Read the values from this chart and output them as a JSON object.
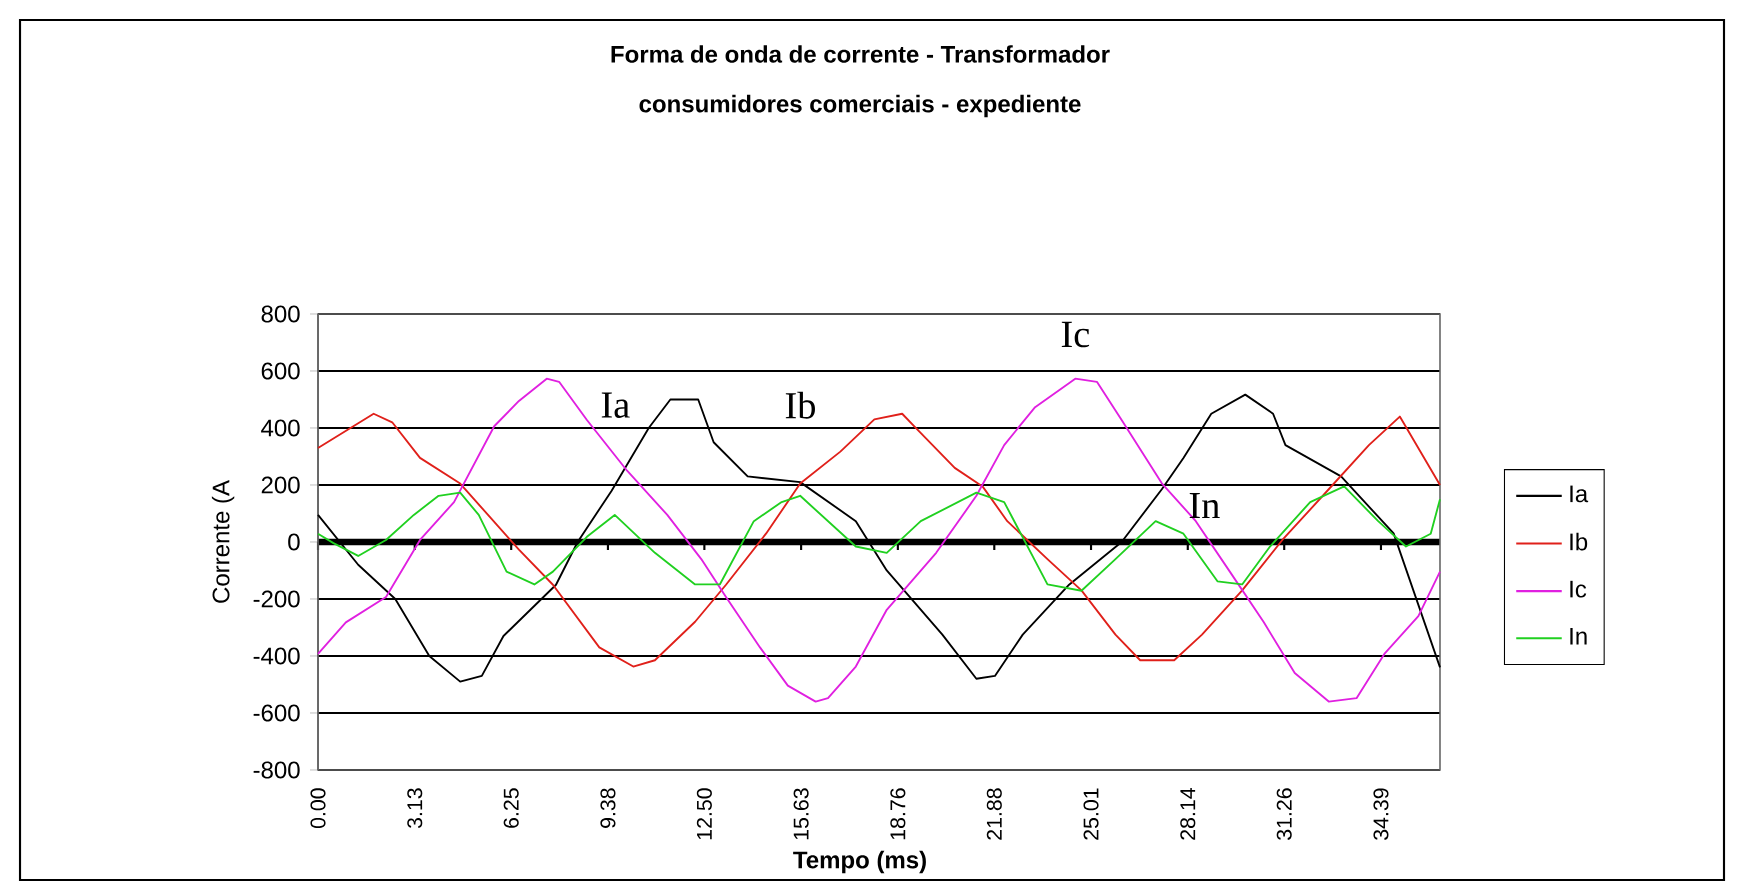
{
  "chart_data": {
    "type": "line",
    "title": "Forma de onda de corrente - Transformador",
    "subtitle": "consumidores comerciais - expediente",
    "xlabel": "Tempo (ms)",
    "ylabel": "Corrente (A",
    "xlim": [
      0,
      36.3
    ],
    "ylim": [
      -800,
      800
    ],
    "xticks": [
      {
        "value": 0,
        "label": "0.00"
      },
      3.13,
      6.25,
      9.38,
      {
        "value": 12.5,
        "label": "12.50"
      },
      15.63,
      18.76,
      21.88,
      25.01,
      28.14,
      31.26,
      34.39
    ],
    "yticks": [
      -800,
      -600,
      -400,
      -200,
      0,
      200,
      400,
      600,
      800
    ],
    "grid": "y",
    "legend": "right",
    "series": [
      {
        "name": "Ia",
        "color": "#000000",
        "x": [
          0,
          1.3,
          2.5,
          3.6,
          4.6,
          5.3,
          6.0,
          7.7,
          8.4,
          9.5,
          10.7,
          11.4,
          12.3,
          12.8,
          13.9,
          15.6,
          17.4,
          18.4,
          20.2,
          21.3,
          21.9,
          22.8,
          24.3,
          26.0,
          27.3,
          28.0,
          28.9,
          30.0,
          30.9,
          31.3,
          33.1,
          34.8,
          36.3
        ],
        "values": [
          95,
          -80,
          -200,
          -400,
          -490,
          -470,
          -330,
          -150,
          0,
          180,
          400,
          500,
          500,
          350,
          230,
          210,
          73,
          -100,
          -325,
          -480,
          -470,
          -325,
          -150,
          0,
          185,
          295,
          450,
          517,
          450,
          340,
          230,
          30,
          -440
        ]
      },
      {
        "name": "Ib",
        "color": "#e0201a",
        "x": [
          0,
          1.8,
          2.4,
          3.3,
          4.6,
          5.5,
          6.5,
          7.6,
          9.1,
          10.2,
          10.9,
          12.2,
          13.2,
          14.5,
          15.6,
          16.9,
          18.0,
          18.9,
          19.3,
          20.6,
          21.5,
          22.3,
          23.6,
          24.7,
          25.8,
          26.6,
          27.7,
          28.6,
          29.9,
          31.2,
          32.7,
          34.0,
          35.0,
          36.3
        ],
        "values": [
          330,
          450,
          420,
          295,
          205,
          95,
          -27,
          -150,
          -370,
          -437,
          -415,
          -280,
          -150,
          30,
          205,
          317,
          430,
          450,
          405,
          260,
          195,
          73,
          -60,
          -170,
          -325,
          -415,
          -415,
          -325,
          -170,
          7,
          185,
          340,
          440,
          200
        ]
      },
      {
        "name": "Ic",
        "color": "#e020e0",
        "x": [
          0,
          0.9,
          2.2,
          3.3,
          4.4,
          5.7,
          6.5,
          7.4,
          7.8,
          8.7,
          10.0,
          11.3,
          12.4,
          13.2,
          14.3,
          15.2,
          16.1,
          16.5,
          17.4,
          18.4,
          20.0,
          21.3,
          22.2,
          23.2,
          24.5,
          25.2,
          26.0,
          27.3,
          28.4,
          29.5,
          30.6,
          31.6,
          32.7,
          33.6,
          34.5,
          35.6,
          36.3
        ],
        "values": [
          -393,
          -282,
          -193,
          7,
          140,
          406,
          495,
          573,
          562,
          428,
          250,
          95,
          -60,
          -193,
          -370,
          -504,
          -560,
          -548,
          -437,
          -238,
          -38,
          162,
          340,
          473,
          573,
          562,
          428,
          206,
          73,
          -104,
          -282,
          -460,
          -560,
          -548,
          -393,
          -260,
          -104
        ]
      },
      {
        "name": "In",
        "color": "#20d020",
        "x": [
          0,
          0.5,
          1.3,
          2.2,
          3.1,
          3.9,
          4.6,
          5.2,
          6.1,
          7.0,
          7.6,
          8.7,
          9.6,
          10.9,
          12.2,
          13.0,
          14.1,
          15.0,
          15.6,
          17.4,
          18.4,
          19.5,
          21.3,
          22.2,
          23.6,
          24.7,
          25.8,
          27.1,
          28.0,
          29.1,
          29.9,
          30.8,
          32.1,
          33.2,
          34.3,
          35.2,
          36.0,
          36.3
        ],
        "values": [
          29,
          -4,
          -49,
          7,
          95,
          162,
          173,
          95,
          -104,
          -149,
          -104,
          18,
          95,
          -38,
          -149,
          -149,
          73,
          140,
          162,
          -16,
          -38,
          73,
          173,
          140,
          -149,
          -171,
          -60,
          73,
          29,
          -138,
          -149,
          -16,
          140,
          195,
          73,
          -16,
          29,
          150
        ]
      }
    ],
    "annotations": [
      "Ia",
      "Ib",
      "Ic",
      "In"
    ]
  }
}
